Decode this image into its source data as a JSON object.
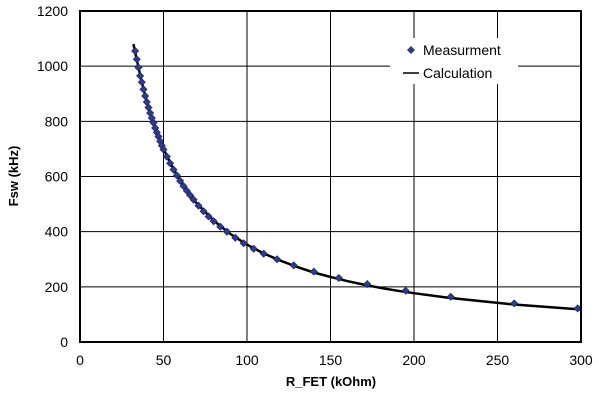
{
  "chart_data": {
    "type": "scatter",
    "xlabel": "R_FET (kOhm)",
    "ylabel": "Fsw (kHz)",
    "xlim": [
      0,
      300
    ],
    "ylim": [
      0,
      1200
    ],
    "xticks": [
      "0",
      "50",
      "100",
      "150",
      "200",
      "250",
      "300"
    ],
    "yticks": [
      "0",
      "200",
      "400",
      "600",
      "800",
      "1000",
      "1200"
    ],
    "grid": true,
    "legend_position": "top-right",
    "series": [
      {
        "name": "Measurment",
        "kind": "marker",
        "marker": "diamond",
        "color": "#2e3a8c",
        "x": [
          33,
          34,
          35,
          36,
          37,
          38,
          39,
          40,
          41,
          42,
          43,
          44,
          45,
          46,
          47,
          48,
          49,
          50,
          52,
          54,
          56,
          58,
          60,
          62,
          64,
          66,
          68,
          71,
          74,
          77,
          80,
          84,
          88,
          93,
          98,
          104,
          110,
          118,
          128,
          140,
          155,
          172,
          195,
          222,
          260,
          298
        ],
        "y": [
          1055,
          1025,
          995,
          965,
          942,
          916,
          892,
          870,
          850,
          830,
          812,
          795,
          776,
          760,
          745,
          728,
          712,
          698,
          672,
          648,
          625,
          604,
          584,
          565,
          548,
          532,
          516,
          494,
          474,
          455,
          438,
          418,
          400,
          378,
          358,
          338,
          320,
          300,
          278,
          255,
          232,
          210,
          186,
          164,
          140,
          122
        ]
      },
      {
        "name": "Calculation",
        "kind": "line",
        "color": "#000000",
        "x": [
          32,
          35,
          38,
          41,
          44,
          47,
          50,
          55,
          60,
          65,
          70,
          80,
          90,
          100,
          110,
          120,
          130,
          140,
          150,
          160,
          170,
          180,
          190,
          200,
          220,
          240,
          260,
          280,
          300
        ],
        "y": [
          1080,
          995,
          918,
          852,
          794,
          744,
          700,
          638,
          584,
          540,
          502,
          440,
          392,
          353,
          321,
          295,
          272,
          252,
          236,
          221,
          208,
          196,
          186,
          177,
          161,
          148,
          136,
          127,
          118
        ]
      }
    ]
  }
}
